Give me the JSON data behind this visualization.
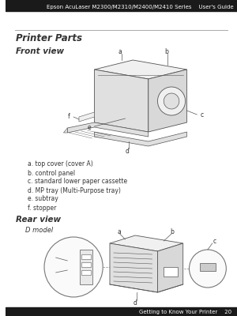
{
  "page_bg": "#ffffff",
  "header_text": "Epson AcuLaser M2300/M2310/M2400/M2410 Series    User's Guide",
  "header_fontsize": 5.0,
  "separator_color": "#aaaaaa",
  "title": "Printer Parts",
  "title_fontsize": 8.5,
  "section1": "Front view",
  "section1_fontsize": 7.5,
  "section2": "Rear view",
  "section2_fontsize": 7.5,
  "subsection2": "D model",
  "subsection2_fontsize": 6.0,
  "labels_list": [
    "a. top cover (cover A)",
    "b. control panel",
    "c. standard lower paper cassette",
    "d. MP tray (Multi-Purpose tray)",
    "e. subtray",
    "f. stopper"
  ],
  "labels_fontsize": 5.5,
  "footer_text": "Getting to Know Your Printer    20",
  "footer_fontsize": 5.0,
  "text_color": "#333333",
  "line_color": "#555555",
  "face_color": "#f0f0f0",
  "face_color2": "#e0e0e0",
  "face_color3": "#d8d8d8"
}
